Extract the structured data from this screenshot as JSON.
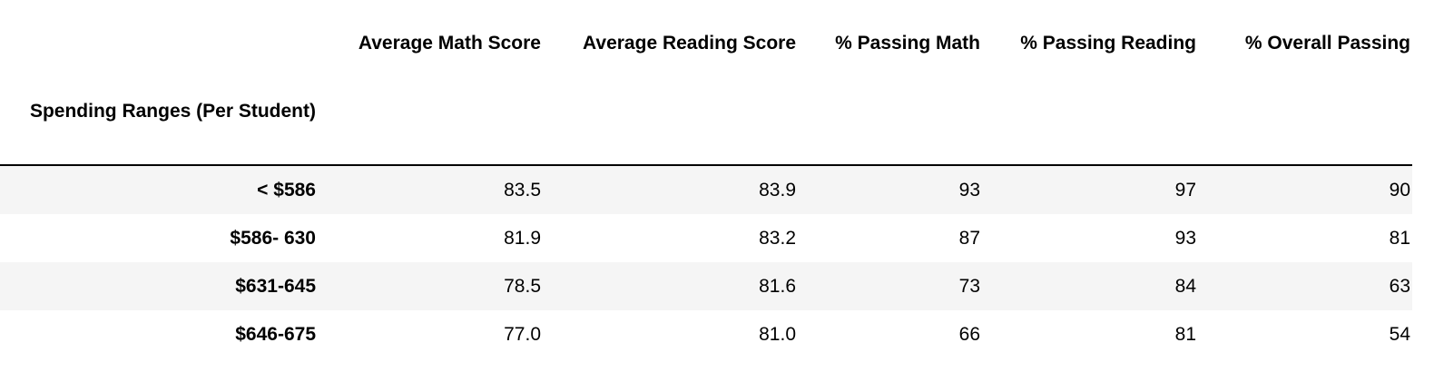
{
  "table": {
    "index_name": "Spending Ranges (Per Student)",
    "columns": [
      "Average Math Score",
      "Average Reading Score",
      "% Passing Math",
      "% Passing Reading",
      "% Overall Passing"
    ],
    "rows": [
      {
        "label": "< $586",
        "cells": [
          "83.5",
          "83.9",
          "93",
          "97",
          "90"
        ]
      },
      {
        "label": "$586- 630",
        "cells": [
          "81.9",
          "83.2",
          "87",
          "93",
          "81"
        ]
      },
      {
        "label": "$631-645",
        "cells": [
          "78.5",
          "81.6",
          "73",
          "84",
          "63"
        ]
      },
      {
        "label": "$646-675",
        "cells": [
          "77.0",
          "81.0",
          "66",
          "81",
          "54"
        ]
      }
    ]
  }
}
